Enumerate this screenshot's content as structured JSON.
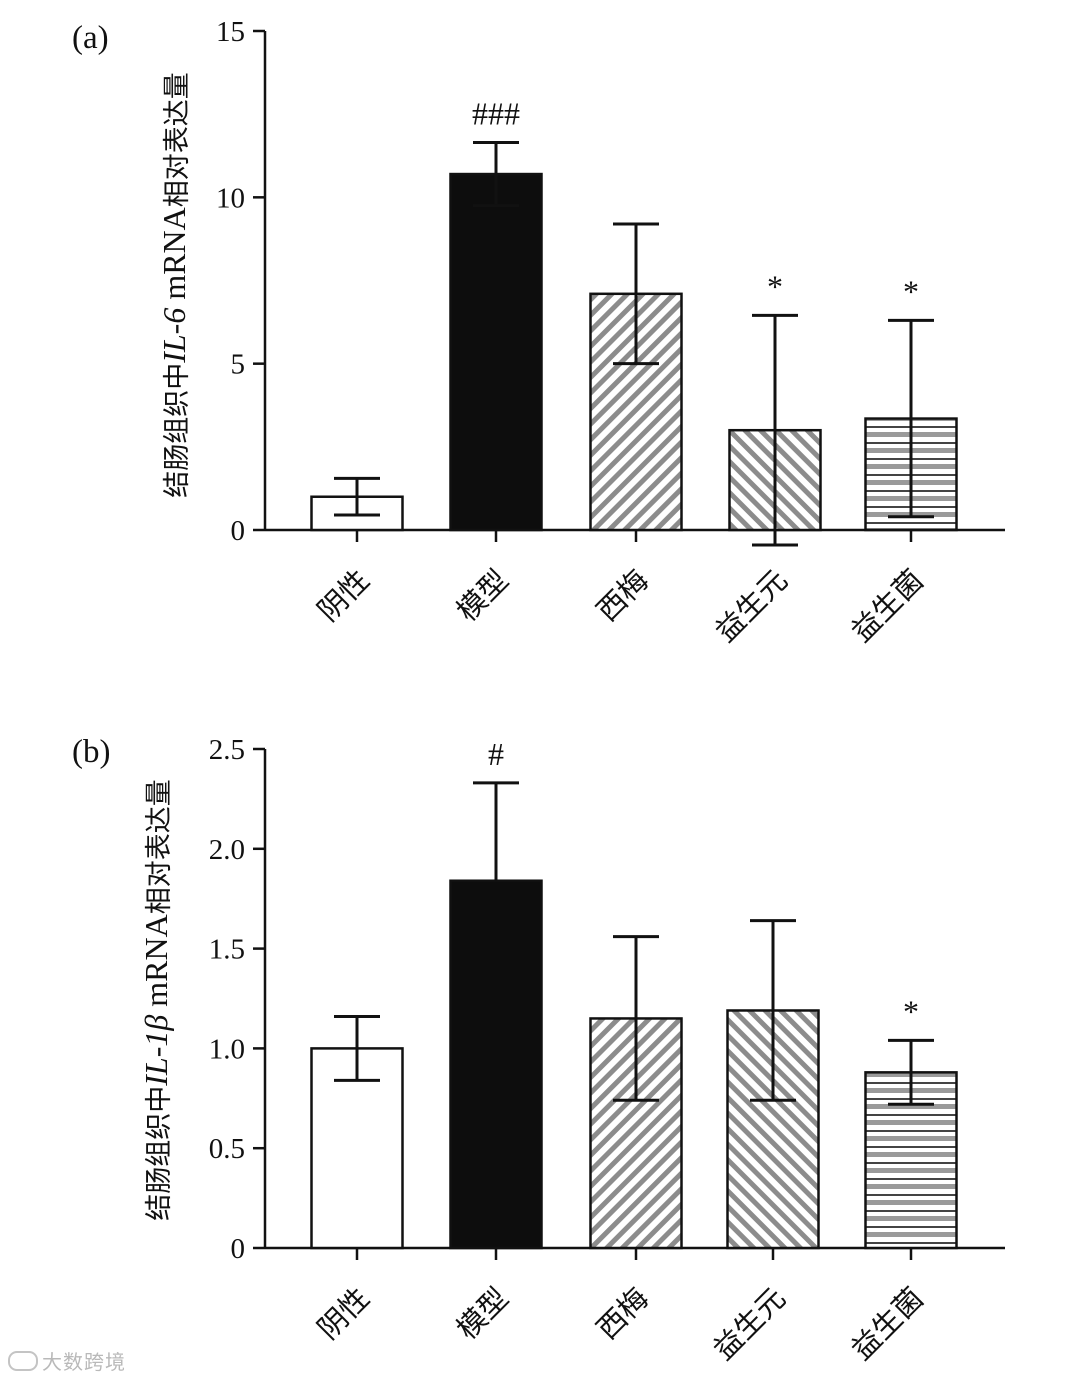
{
  "watermark": {
    "text": "大数跨境",
    "icon": "circle-logo-icon"
  },
  "chart_data": [
    {
      "type": "bar",
      "panel": "(a)",
      "ylabel": {
        "prefix": "结肠组织中",
        "gene": "IL-6",
        "middle": " mRNA",
        "suffix": "相对表达量"
      },
      "ylim": [
        0,
        15
      ],
      "yticks": [
        0,
        5,
        10,
        15
      ],
      "ytick_labels": [
        "0",
        "5",
        "10",
        "15"
      ],
      "categories": [
        "阴性",
        "模型",
        "西梅",
        "益生元",
        "益生菌"
      ],
      "values": [
        1.0,
        10.7,
        7.1,
        3.0,
        3.35
      ],
      "errors": [
        0.55,
        0.95,
        2.1,
        3.45,
        2.95
      ],
      "error_mode": [
        "both",
        "both",
        "both",
        "both",
        "both"
      ],
      "fills": [
        "white",
        "black",
        "hatch-diag",
        "hatch-back",
        "hatch-horiz"
      ],
      "significance": [
        "",
        "###",
        "",
        "*",
        "*"
      ]
    },
    {
      "type": "bar",
      "panel": "(b)",
      "ylabel": {
        "prefix": "结肠组织中",
        "gene": "IL-1β",
        "middle": " mRNA",
        "suffix": "相对表达量"
      },
      "ylim": [
        0,
        2.5
      ],
      "yticks": [
        0,
        0.5,
        1.0,
        1.5,
        2.0,
        2.5
      ],
      "ytick_labels": [
        "0",
        "0.5",
        "1.0",
        "1.5",
        "2.0",
        "2.5"
      ],
      "categories": [
        "阴性",
        "模型",
        "西梅",
        "益生元",
        "益生菌"
      ],
      "values": [
        1.0,
        1.84,
        1.15,
        1.19,
        0.88
      ],
      "errors": [
        0.16,
        0.49,
        0.41,
        0.45,
        0.16
      ],
      "error_mode": [
        "both",
        "up",
        "both",
        "both",
        "both"
      ],
      "fills": [
        "white",
        "black",
        "hatch-diag",
        "hatch-back",
        "hatch-horiz"
      ],
      "significance": [
        "",
        "#",
        "",
        "",
        "*"
      ]
    }
  ]
}
